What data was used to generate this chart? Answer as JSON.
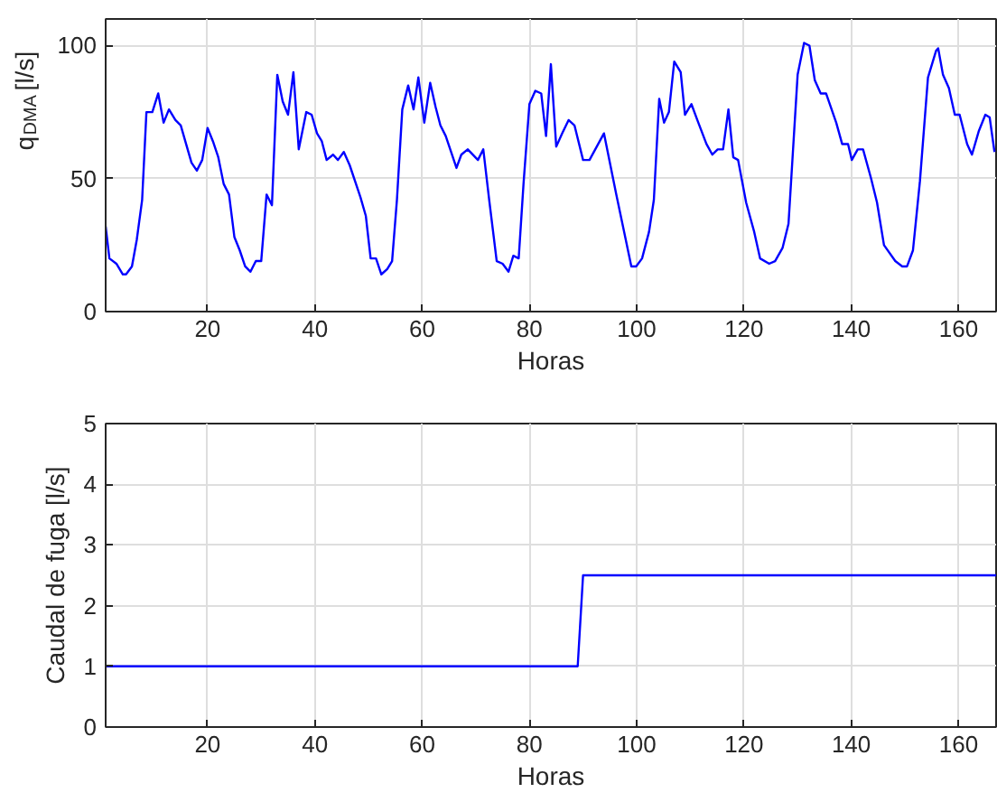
{
  "chart_data": [
    {
      "type": "line",
      "xlabel": "Horas",
      "ylabel": "q$_{DMA}$ [l/s]",
      "xlim": [
        1,
        167
      ],
      "ylim": [
        0,
        110
      ],
      "xticks": [
        20,
        40,
        60,
        80,
        100,
        120,
        140,
        160
      ],
      "yticks": [
        0,
        50,
        100
      ],
      "grid": true,
      "x": [
        1,
        1.7,
        3,
        4.2,
        4.8,
        5.9,
        6.8,
        7.8,
        8.6,
        9.7,
        10.8,
        11.8,
        12.8,
        14,
        15,
        17,
        18,
        19,
        20,
        21,
        22,
        23,
        24,
        25,
        26,
        27,
        28,
        29,
        30,
        31,
        32,
        33,
        34,
        35,
        36,
        37,
        38.4,
        39.4,
        40.4,
        41.3,
        42.2,
        43.4,
        44.3,
        45.4,
        46.5,
        48.5,
        49.5,
        50.4,
        51.4,
        52.4,
        53.5,
        54.4,
        55.3,
        56.3,
        57.4,
        58.4,
        59.3,
        60.4,
        61.5,
        62.5,
        63.4,
        64.4,
        66.4,
        67.3,
        68.5,
        70.4,
        71.4,
        72.5,
        73.9,
        75,
        76.1,
        77,
        78,
        78.9,
        80,
        81.1,
        82.2,
        83.1,
        84,
        85,
        86.1,
        87.3,
        88.4,
        90,
        91.2,
        93.9,
        96.2,
        99,
        99.9,
        101,
        102.3,
        103.2,
        104.2,
        105.1,
        106,
        107,
        108.2,
        109,
        110.2,
        111.3,
        113,
        114.1,
        115.1,
        116.1,
        117.1,
        118,
        118.9,
        120.4,
        121.9,
        123,
        124.7,
        125.8,
        127.2,
        128.3,
        130,
        131.2,
        132.2,
        133.2,
        134.3,
        135.3,
        137.2,
        138.3,
        139.4,
        140.1,
        141.2,
        142.2,
        143.7,
        144.8,
        146.1,
        148.2,
        149.5,
        150.4,
        151.5,
        152.8,
        154.3,
        155.8,
        156.2,
        157.1,
        158.2,
        159.3,
        160.2,
        161.6,
        162.5,
        163.8,
        165,
        165.8,
        166.7
      ],
      "series": [
        {
          "color": "#0000ff",
          "values": [
            32,
            20,
            18,
            14,
            14,
            17,
            27,
            42,
            75,
            75,
            82,
            71,
            76,
            72,
            70,
            56,
            53,
            57,
            69,
            64,
            58,
            48,
            44,
            28,
            23,
            17,
            15,
            19,
            19,
            44,
            40,
            89,
            79,
            74,
            90,
            61,
            75,
            74,
            67,
            64,
            57,
            59,
            57,
            60,
            55,
            43,
            36,
            20,
            20,
            14,
            16,
            19,
            42,
            76,
            85,
            76,
            88,
            71,
            86,
            77,
            70,
            66,
            54,
            59,
            61,
            57,
            61,
            42,
            19,
            18,
            15,
            21,
            20,
            48,
            78,
            83,
            82,
            66,
            93,
            62,
            67,
            72,
            70,
            57,
            57,
            67,
            44,
            17,
            17,
            20,
            30,
            42,
            80,
            71,
            75,
            94,
            90,
            74,
            78,
            72,
            63,
            59,
            61,
            61,
            76,
            58,
            57,
            41,
            30,
            20,
            18,
            19,
            24,
            33,
            89,
            101,
            100,
            87,
            82,
            82,
            71,
            63,
            63,
            57,
            61,
            61,
            50,
            41,
            25,
            19,
            17,
            17,
            23,
            49,
            88,
            98,
            99,
            89,
            84,
            74,
            74,
            63,
            59,
            68,
            74,
            73,
            60
          ]
        }
      ]
    },
    {
      "type": "line",
      "xlabel": "Horas",
      "ylabel": "Caudal de fuga [l/s]",
      "xlim": [
        1,
        167
      ],
      "ylim": [
        0,
        5
      ],
      "xticks": [
        20,
        40,
        60,
        80,
        100,
        120,
        140,
        160
      ],
      "yticks": [
        0,
        1,
        2,
        3,
        4,
        5
      ],
      "grid": true,
      "x": [
        1,
        89,
        90,
        167
      ],
      "series": [
        {
          "color": "#0000ff",
          "values": [
            1,
            1,
            2.5,
            2.5
          ]
        }
      ]
    }
  ]
}
